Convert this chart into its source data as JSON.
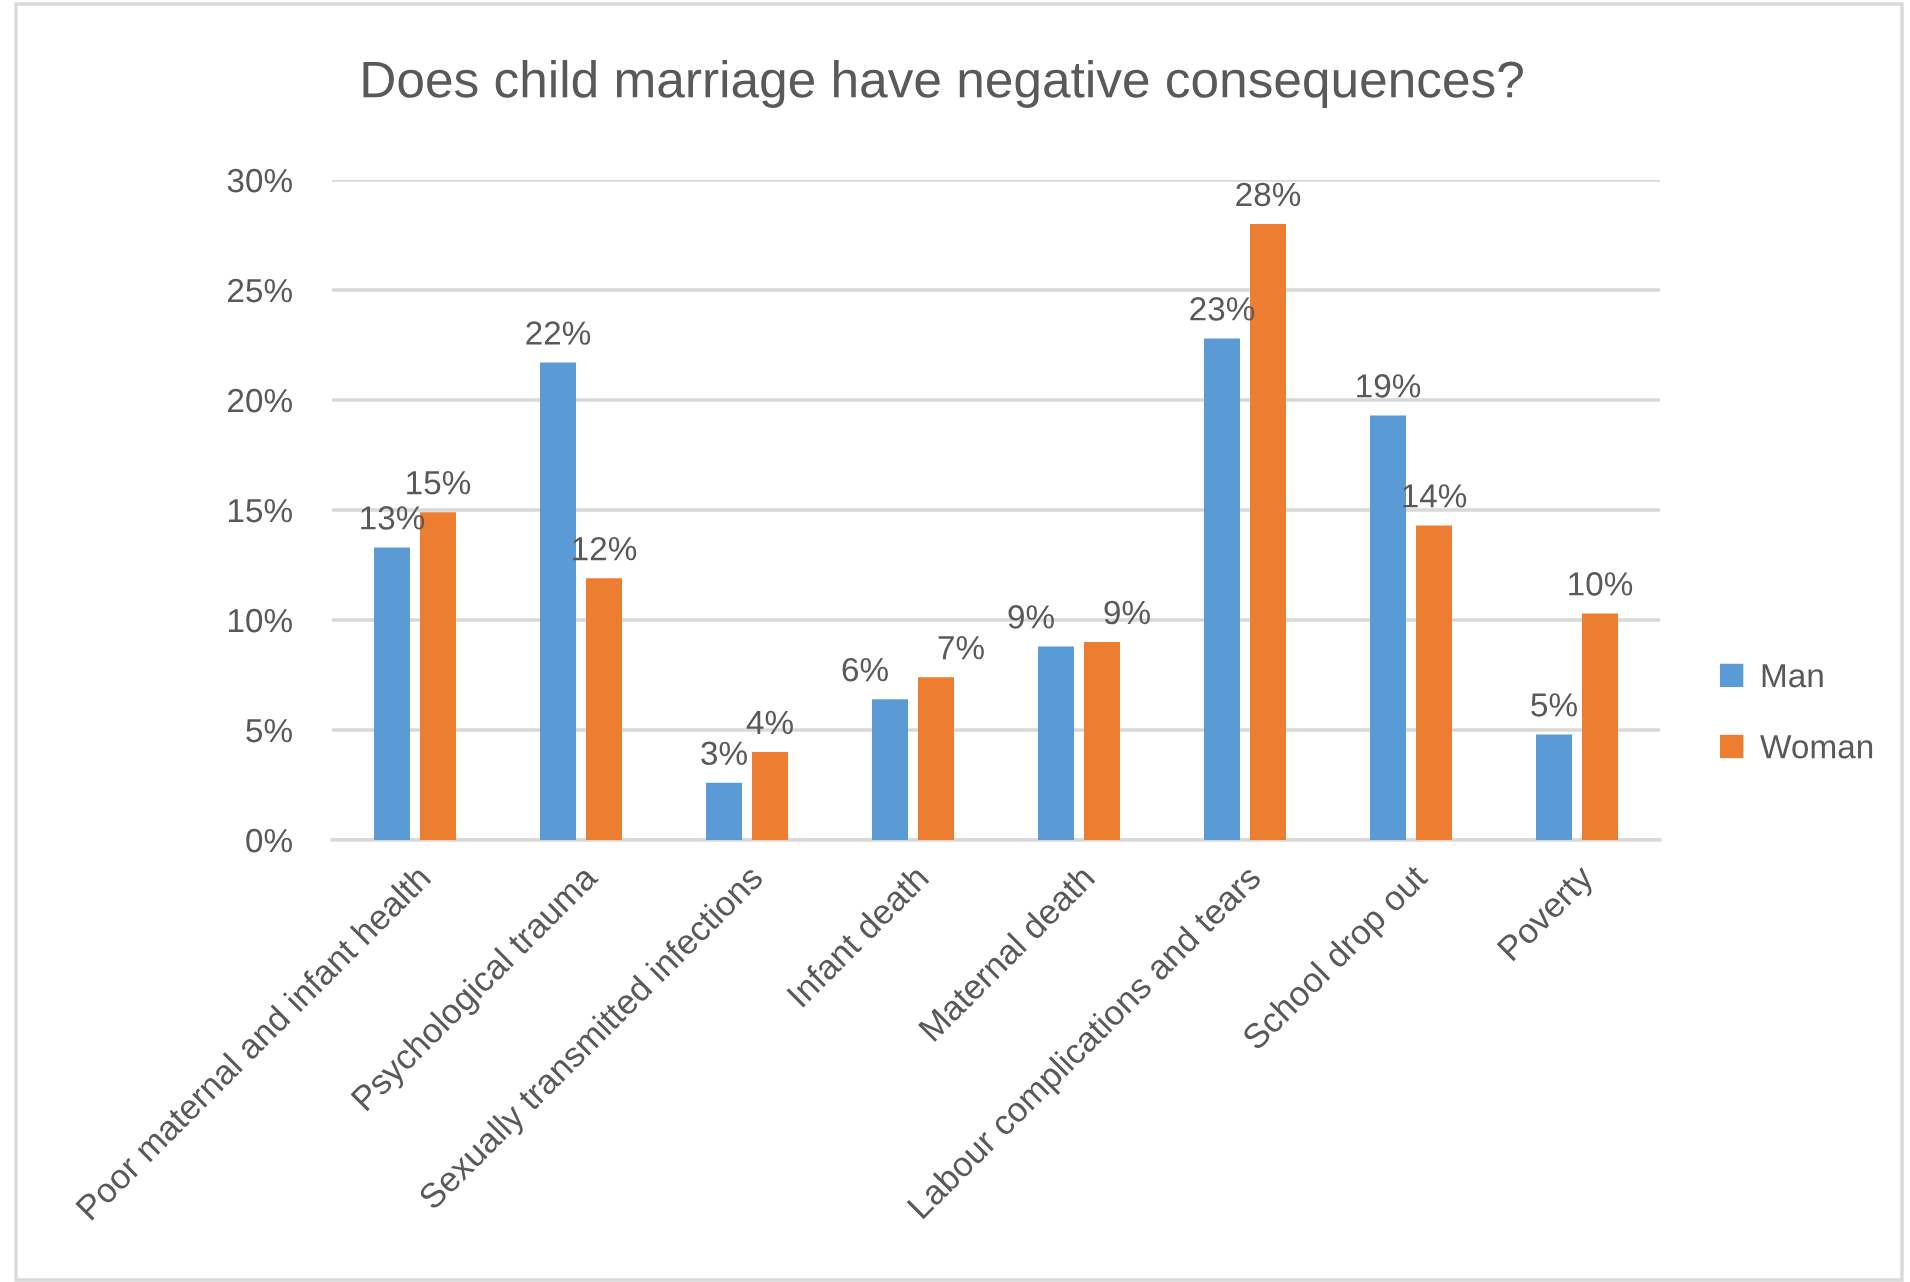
{
  "chart_data": {
    "type": "bar",
    "title": "Does child marriage have negative consequences?",
    "categories": [
      "Poor maternal and infant health",
      "Psychological trauma",
      "Sexually transmitted infections",
      "Infant death",
      "Maternal death",
      "Labour complications and tears",
      "School drop out",
      "Poverty"
    ],
    "series": [
      {
        "name": "Man",
        "color": "#5b9bd5",
        "values": [
          13.3,
          21.7,
          2.6,
          6.4,
          8.8,
          22.8,
          19.3,
          4.8
        ],
        "value_labels": [
          "13%",
          "22%",
          "3%",
          "6%",
          "9%",
          "23%",
          "19%",
          "5%"
        ]
      },
      {
        "name": "Woman",
        "color": "#ed7d31",
        "values": [
          14.9,
          11.9,
          4.0,
          7.4,
          9.0,
          28.0,
          14.3,
          10.3
        ],
        "value_labels": [
          "15%",
          "12%",
          "4%",
          "7%",
          "9%",
          "28%",
          "14%",
          "10%"
        ]
      }
    ],
    "ylim": [
      0,
      30
    ],
    "yticks": [
      {
        "value": 0,
        "label": "0%"
      },
      {
        "value": 5,
        "label": "5%"
      },
      {
        "value": 10,
        "label": "10%"
      },
      {
        "value": 15,
        "label": "15%"
      },
      {
        "value": 20,
        "label": "20%"
      },
      {
        "value": 25,
        "label": "25%"
      },
      {
        "value": 30,
        "label": "30%"
      }
    ],
    "grid": "y",
    "legend": "right"
  }
}
